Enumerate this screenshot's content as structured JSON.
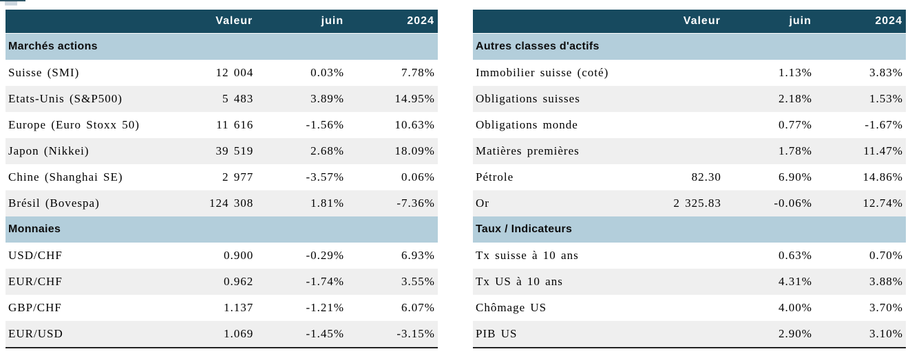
{
  "colors": {
    "header_bg": "#174a5f",
    "section_bg": "#b3cedb",
    "row_alt_bg": "#efefef",
    "bottom_border": "#222222"
  },
  "tables": {
    "left": {
      "columns": [
        "Valeur",
        "juin",
        "2024"
      ],
      "sections": [
        {
          "title": "Marchés actions",
          "rows": [
            {
              "label": "Suisse (SMI)",
              "valeur": "12 004",
              "juin": "0.03%",
              "y2024": "7.78%"
            },
            {
              "label": "Etats-Unis (S&P500)",
              "valeur": "5 483",
              "juin": "3.89%",
              "y2024": "14.95%"
            },
            {
              "label": "Europe (Euro Stoxx 50)",
              "valeur": "11 616",
              "juin": "-1.56%",
              "y2024": "10.63%"
            },
            {
              "label": "Japon (Nikkei)",
              "valeur": "39 519",
              "juin": "2.68%",
              "y2024": "18.09%"
            },
            {
              "label": "Chine (Shanghai SE)",
              "valeur": "2 977",
              "juin": "-3.57%",
              "y2024": "0.06%"
            },
            {
              "label": "Brésil (Bovespa)",
              "valeur": "124 308",
              "juin": "1.81%",
              "y2024": "-7.36%"
            }
          ]
        },
        {
          "title": "Monnaies",
          "rows": [
            {
              "label": "USD/CHF",
              "valeur": "0.900",
              "juin": "-0.29%",
              "y2024": "6.93%"
            },
            {
              "label": "EUR/CHF",
              "valeur": "0.962",
              "juin": "-1.74%",
              "y2024": "3.55%"
            },
            {
              "label": "GBP/CHF",
              "valeur": "1.137",
              "juin": "-1.21%",
              "y2024": "6.07%"
            },
            {
              "label": "EUR/USD",
              "valeur": "1.069",
              "juin": "-1.45%",
              "y2024": "-3.15%"
            }
          ]
        }
      ]
    },
    "right": {
      "columns": [
        "Valeur",
        "juin",
        "2024"
      ],
      "sections": [
        {
          "title": "Autres classes d'actifs",
          "rows": [
            {
              "label": "Immobilier suisse (coté)",
              "valeur": "",
              "juin": "1.13%",
              "y2024": "3.83%"
            },
            {
              "label": "Obligations suisses",
              "valeur": "",
              "juin": "2.18%",
              "y2024": "1.53%"
            },
            {
              "label": "Obligations monde",
              "valeur": "",
              "juin": "0.77%",
              "y2024": "-1.67%"
            },
            {
              "label": "Matières premières",
              "valeur": "",
              "juin": "1.78%",
              "y2024": "11.47%"
            },
            {
              "label": "Pétrole",
              "valeur": "82.30",
              "juin": "6.90%",
              "y2024": "14.86%"
            },
            {
              "label": "Or",
              "valeur": "2 325.83",
              "juin": "-0.06%",
              "y2024": "12.74%"
            }
          ]
        },
        {
          "title": "Taux / Indicateurs",
          "rows": [
            {
              "label": "Tx suisse à 10 ans",
              "valeur": "",
              "juin": "0.63%",
              "y2024": "0.70%"
            },
            {
              "label": "Tx US à 10 ans",
              "valeur": "",
              "juin": "4.31%",
              "y2024": "3.88%"
            },
            {
              "label": "Chômage US",
              "valeur": "",
              "juin": "4.00%",
              "y2024": "3.70%"
            },
            {
              "label": "PIB US",
              "valeur": "",
              "juin": "2.90%",
              "y2024": "3.10%"
            }
          ]
        }
      ]
    }
  }
}
